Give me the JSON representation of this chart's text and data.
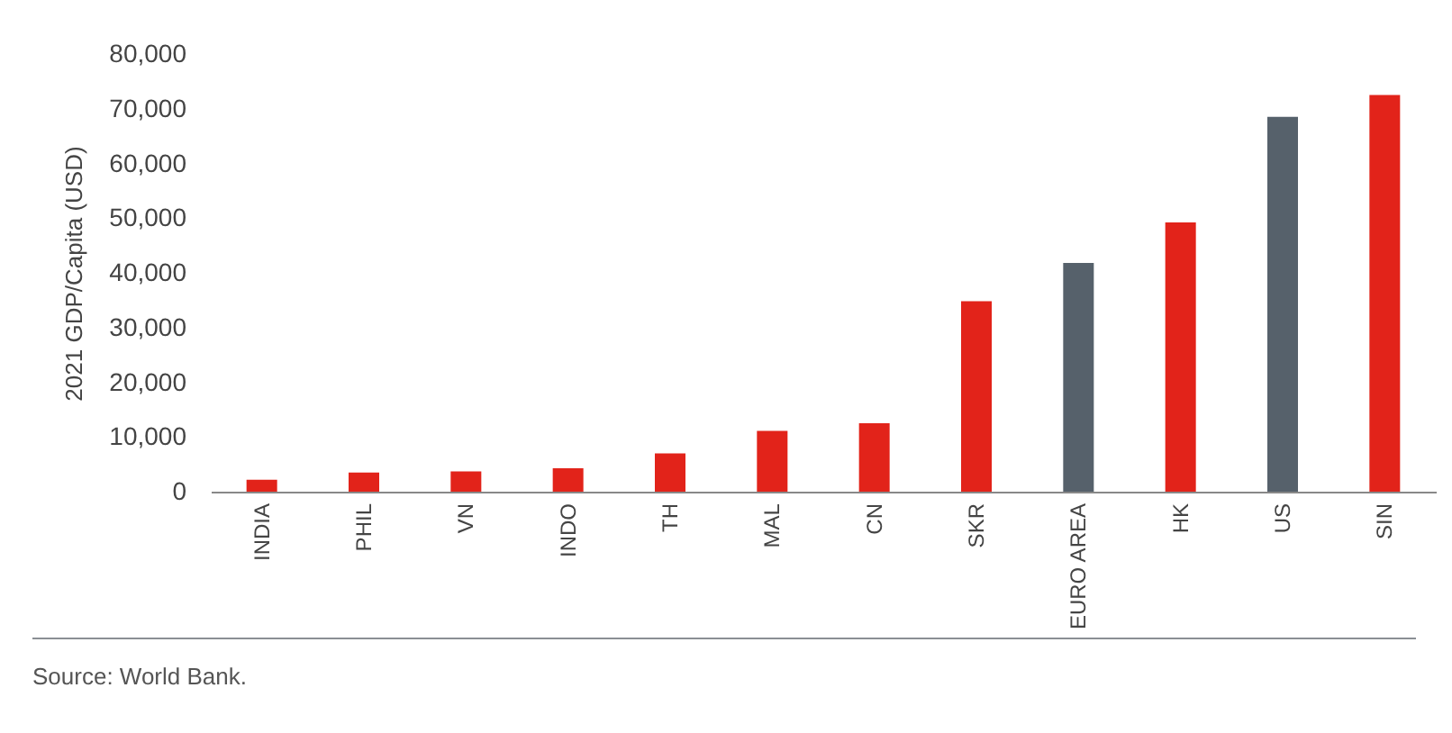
{
  "chart_data": {
    "type": "bar",
    "ylabel": "2021 GDP/Capita (USD)",
    "categories": [
      "INDIA",
      "PHIL",
      "VN",
      "INDO",
      "TH",
      "MAL",
      "CN",
      "SKR",
      "EURO AREA",
      "HK",
      "US",
      "SIN"
    ],
    "values": [
      2200,
      3500,
      3700,
      4300,
      7000,
      11100,
      12500,
      34800,
      41800,
      49200,
      68500,
      72500
    ],
    "colors": [
      "#e2231a",
      "#e2231a",
      "#e2231a",
      "#e2231a",
      "#e2231a",
      "#e2231a",
      "#e2231a",
      "#e2231a",
      "#56616b",
      "#e2231a",
      "#56616b",
      "#e2231a"
    ],
    "ylim": [
      0,
      80000
    ],
    "yticks": [
      0,
      {
        "value": 10000,
        "label": "10,000"
      },
      {
        "value": 20000,
        "label": "20,000"
      },
      {
        "value": 30000,
        "label": "30,000"
      },
      {
        "value": 40000,
        "label": "40,000"
      },
      {
        "value": 50000,
        "label": "50,000"
      },
      {
        "value": 60000,
        "label": "60,000"
      },
      {
        "value": 70000,
        "label": "70,000"
      },
      {
        "value": 80000,
        "label": "80,000"
      }
    ],
    "grid": false,
    "annotations": [
      "Source: World Bank."
    ]
  }
}
